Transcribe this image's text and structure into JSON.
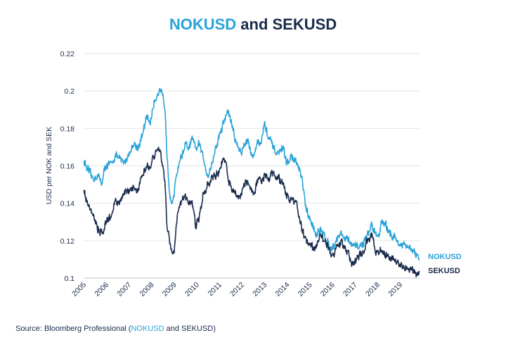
{
  "chart_data": {
    "type": "line",
    "title": "NOKUSD and SEKUSD",
    "title_parts": {
      "first": "NOKUSD",
      "middle": " and ",
      "last": "SEKUSD"
    },
    "xlabel": "",
    "ylabel": "USD per NOK and SEK",
    "ylim": [
      0.1,
      0.22
    ],
    "xlim": [
      2005,
      2019.9
    ],
    "y_ticks": [
      "0.1",
      "0.12",
      "0.14",
      "0.16",
      "0.18",
      "0.2",
      "0.22"
    ],
    "y_tick_values": [
      0.1,
      0.12,
      0.14,
      0.16,
      0.18,
      0.2,
      0.22
    ],
    "x_ticks": [
      "2005",
      "2006",
      "2007",
      "2008",
      "2009",
      "2010",
      "2011",
      "2012",
      "2013",
      "2014",
      "2015",
      "2016",
      "2017",
      "2018",
      "2019"
    ],
    "grid": true,
    "legend_position": "right",
    "series": [
      {
        "name": "NOKUSD",
        "color": "#2aa3d9",
        "x": [
          2005.0,
          2005.2,
          2005.4,
          2005.6,
          2005.8,
          2006.0,
          2006.2,
          2006.4,
          2006.6,
          2006.8,
          2007.0,
          2007.2,
          2007.4,
          2007.6,
          2007.8,
          2007.95,
          2008.1,
          2008.3,
          2008.4,
          2008.5,
          2008.6,
          2008.7,
          2008.8,
          2008.9,
          2009.0,
          2009.1,
          2009.25,
          2009.4,
          2009.5,
          2009.65,
          2009.8,
          2009.95,
          2010.1,
          2010.3,
          2010.5,
          2010.6,
          2010.8,
          2011.0,
          2011.15,
          2011.3,
          2011.4,
          2011.55,
          2011.7,
          2011.85,
          2012.0,
          2012.2,
          2012.35,
          2012.5,
          2012.7,
          2012.85,
          2013.0,
          2013.15,
          2013.3,
          2013.45,
          2013.6,
          2013.8,
          2014.0,
          2014.2,
          2014.4,
          2014.55,
          2014.7,
          2014.85,
          2015.0,
          2015.15,
          2015.3,
          2015.5,
          2015.7,
          2015.85,
          2016.0,
          2016.2,
          2016.4,
          2016.6,
          2016.8,
          2017.0,
          2017.2,
          2017.4,
          2017.6,
          2017.75,
          2017.9,
          2018.05,
          2018.2,
          2018.4,
          2018.6,
          2018.8,
          2019.0,
          2019.2,
          2019.4,
          2019.6,
          2019.75,
          2019.85
        ],
        "values": [
          0.163,
          0.157,
          0.153,
          0.155,
          0.151,
          0.161,
          0.16,
          0.166,
          0.163,
          0.162,
          0.166,
          0.172,
          0.17,
          0.176,
          0.186,
          0.183,
          0.193,
          0.2,
          0.201,
          0.196,
          0.188,
          0.165,
          0.147,
          0.142,
          0.143,
          0.155,
          0.163,
          0.167,
          0.172,
          0.168,
          0.175,
          0.168,
          0.172,
          0.164,
          0.155,
          0.158,
          0.167,
          0.176,
          0.181,
          0.187,
          0.189,
          0.183,
          0.174,
          0.17,
          0.167,
          0.175,
          0.17,
          0.164,
          0.174,
          0.171,
          0.183,
          0.176,
          0.172,
          0.168,
          0.166,
          0.17,
          0.161,
          0.165,
          0.162,
          0.158,
          0.15,
          0.136,
          0.131,
          0.128,
          0.124,
          0.125,
          0.122,
          0.118,
          0.116,
          0.121,
          0.124,
          0.121,
          0.119,
          0.116,
          0.117,
          0.119,
          0.124,
          0.129,
          0.124,
          0.123,
          0.13,
          0.127,
          0.124,
          0.121,
          0.118,
          0.117,
          0.116,
          0.114,
          0.112,
          0.109
        ]
      },
      {
        "name": "SEKUSD",
        "color": "#1a2b4c",
        "x": [
          2005.0,
          2005.2,
          2005.4,
          2005.6,
          2005.8,
          2006.0,
          2006.2,
          2006.4,
          2006.6,
          2006.8,
          2007.0,
          2007.2,
          2007.4,
          2007.6,
          2007.8,
          2007.95,
          2008.1,
          2008.3,
          2008.4,
          2008.5,
          2008.6,
          2008.7,
          2008.8,
          2008.9,
          2009.0,
          2009.1,
          2009.25,
          2009.4,
          2009.5,
          2009.65,
          2009.8,
          2009.95,
          2010.1,
          2010.3,
          2010.5,
          2010.6,
          2010.8,
          2011.0,
          2011.15,
          2011.3,
          2011.4,
          2011.55,
          2011.7,
          2011.85,
          2012.0,
          2012.2,
          2012.35,
          2012.5,
          2012.7,
          2012.85,
          2013.0,
          2013.15,
          2013.3,
          2013.45,
          2013.6,
          2013.8,
          2014.0,
          2014.2,
          2014.4,
          2014.55,
          2014.7,
          2014.85,
          2015.0,
          2015.15,
          2015.3,
          2015.5,
          2015.7,
          2015.85,
          2016.0,
          2016.2,
          2016.4,
          2016.6,
          2016.8,
          2017.0,
          2017.2,
          2017.4,
          2017.6,
          2017.75,
          2017.9,
          2018.05,
          2018.2,
          2018.4,
          2018.6,
          2018.8,
          2019.0,
          2019.2,
          2019.4,
          2019.6,
          2019.75,
          2019.85
        ],
        "values": [
          0.147,
          0.14,
          0.135,
          0.127,
          0.125,
          0.13,
          0.133,
          0.141,
          0.141,
          0.145,
          0.147,
          0.15,
          0.148,
          0.155,
          0.162,
          0.158,
          0.165,
          0.17,
          0.168,
          0.16,
          0.15,
          0.127,
          0.12,
          0.115,
          0.112,
          0.128,
          0.14,
          0.142,
          0.145,
          0.139,
          0.141,
          0.128,
          0.13,
          0.146,
          0.15,
          0.152,
          0.155,
          0.157,
          0.163,
          0.16,
          0.152,
          0.147,
          0.146,
          0.143,
          0.145,
          0.152,
          0.15,
          0.144,
          0.153,
          0.152,
          0.155,
          0.153,
          0.156,
          0.154,
          0.154,
          0.15,
          0.144,
          0.142,
          0.14,
          0.132,
          0.124,
          0.12,
          0.119,
          0.116,
          0.118,
          0.122,
          0.12,
          0.115,
          0.113,
          0.116,
          0.12,
          0.116,
          0.11,
          0.108,
          0.112,
          0.115,
          0.12,
          0.124,
          0.115,
          0.113,
          0.115,
          0.111,
          0.111,
          0.109,
          0.107,
          0.104,
          0.106,
          0.104,
          0.103,
          0.102
        ]
      }
    ],
    "source": {
      "prefix": "Source: Bloomberg Professional (",
      "highlight": "NOKUSD",
      "suffix": " and SEKUSD)"
    }
  }
}
